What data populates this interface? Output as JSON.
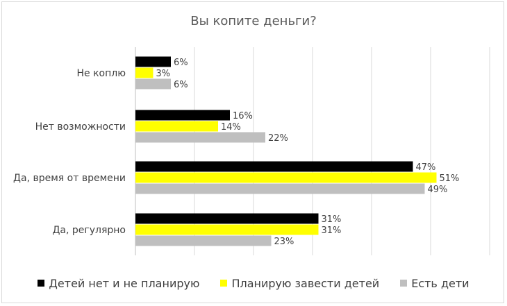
{
  "chart_data": {
    "type": "bar",
    "orientation": "horizontal",
    "title": "Вы копите деньги?",
    "categories": [
      "Не коплю",
      "Нет возможности",
      "Да, время от времени",
      "Да, регулярно"
    ],
    "series": [
      {
        "name": "Детей нет и не планирую",
        "color": "#000000",
        "values": [
          6,
          16,
          47,
          31
        ],
        "labels": [
          "6%",
          "16%",
          "47%",
          "31%"
        ]
      },
      {
        "name": "Планирую завести детей",
        "color": "#ffff00",
        "values": [
          3,
          14,
          51,
          31
        ],
        "labels": [
          "3%",
          "14%",
          "51%",
          "31%"
        ]
      },
      {
        "name": "Есть дети",
        "color": "#bfbfbf",
        "values": [
          6,
          22,
          49,
          23
        ],
        "labels": [
          "6%",
          "22%",
          "49%",
          "23%"
        ]
      }
    ],
    "xlim": [
      0,
      60
    ],
    "grid": true,
    "legend_position": "bottom"
  }
}
